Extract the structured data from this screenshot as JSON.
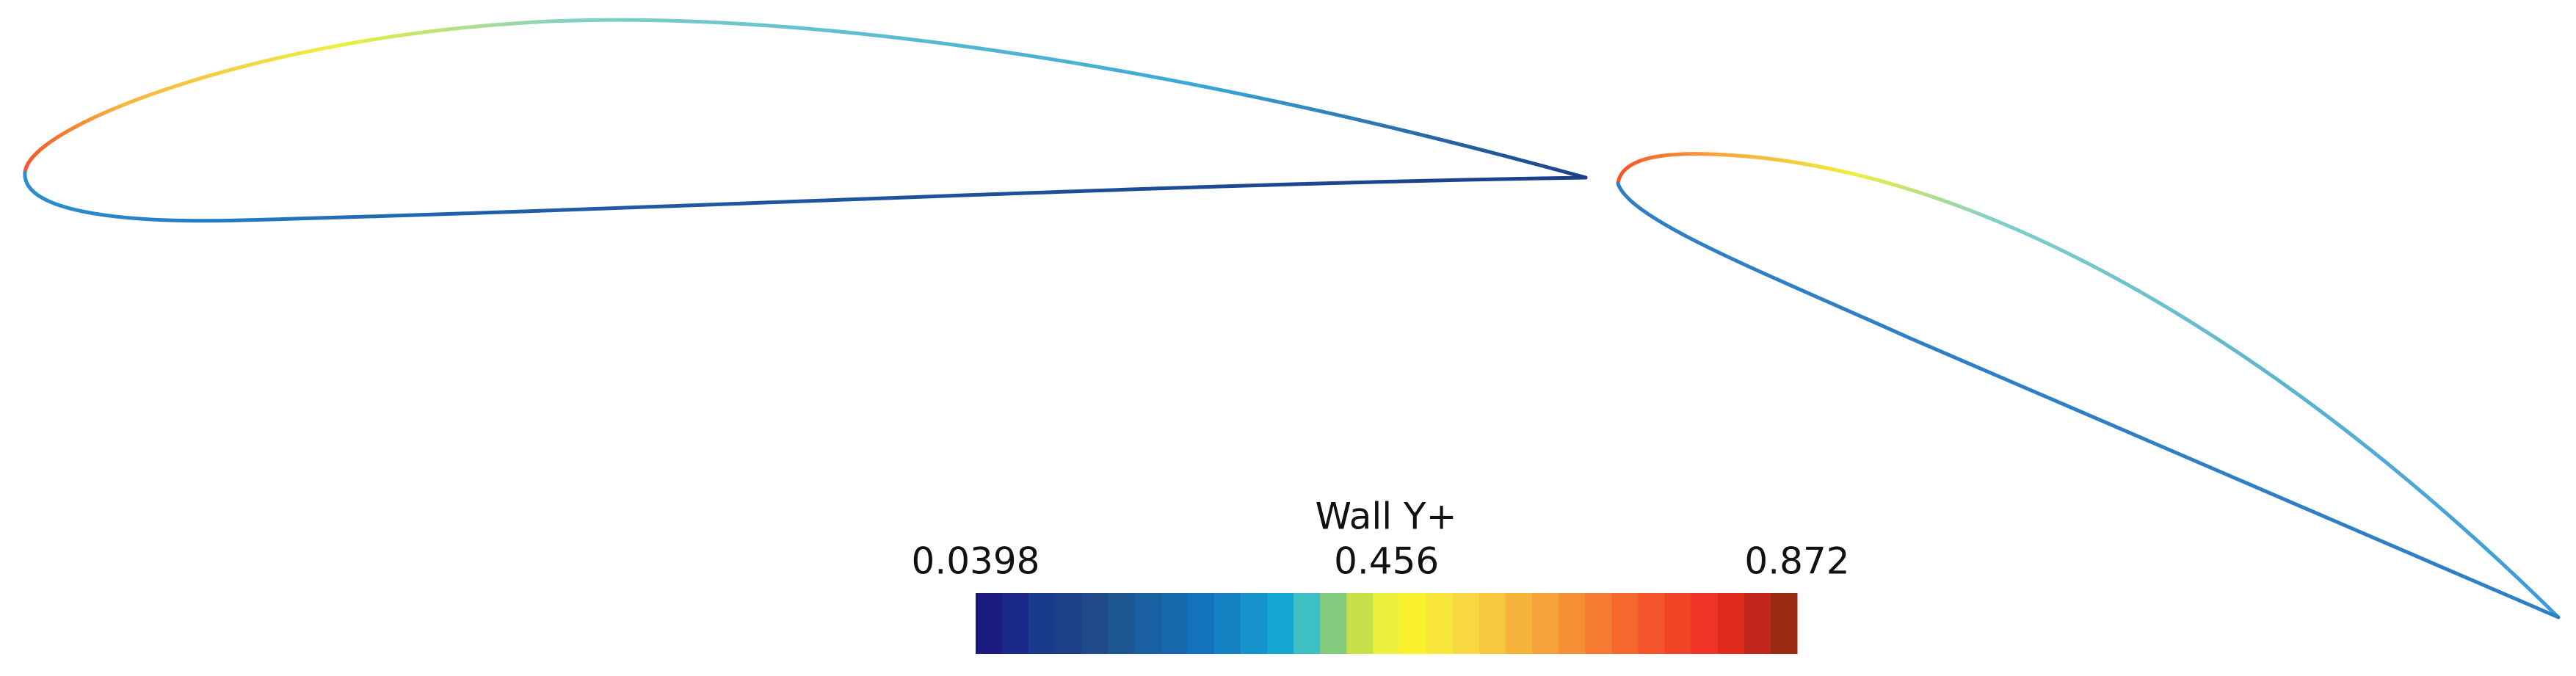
{
  "chart_data": {
    "type": "colormap",
    "title": "Wall Y+",
    "clim": [
      0.0398,
      0.872
    ],
    "cticks": [
      0.0398,
      0.456,
      0.872
    ],
    "colors": [
      "#1a1a80",
      "#1b2a8a",
      "#1a3a8c",
      "#1c3f88",
      "#1f4a8a",
      "#1c5590",
      "#1a5fa0",
      "#1668ad",
      "#1273ba",
      "#1582c4",
      "#1793cc",
      "#12a6d1",
      "#3ebfc4",
      "#86cc7e",
      "#c7e04a",
      "#eef03e",
      "#f7f02a",
      "#f9e63c",
      "#f8d942",
      "#f7c740",
      "#f7b43d",
      "#f7a13a",
      "#f68e36",
      "#f57a32",
      "#f4682e",
      "#f4552b",
      "#f44428",
      "#ef3324",
      "#e02a1e",
      "#c0271a",
      "#9a2a10"
    ]
  }
}
